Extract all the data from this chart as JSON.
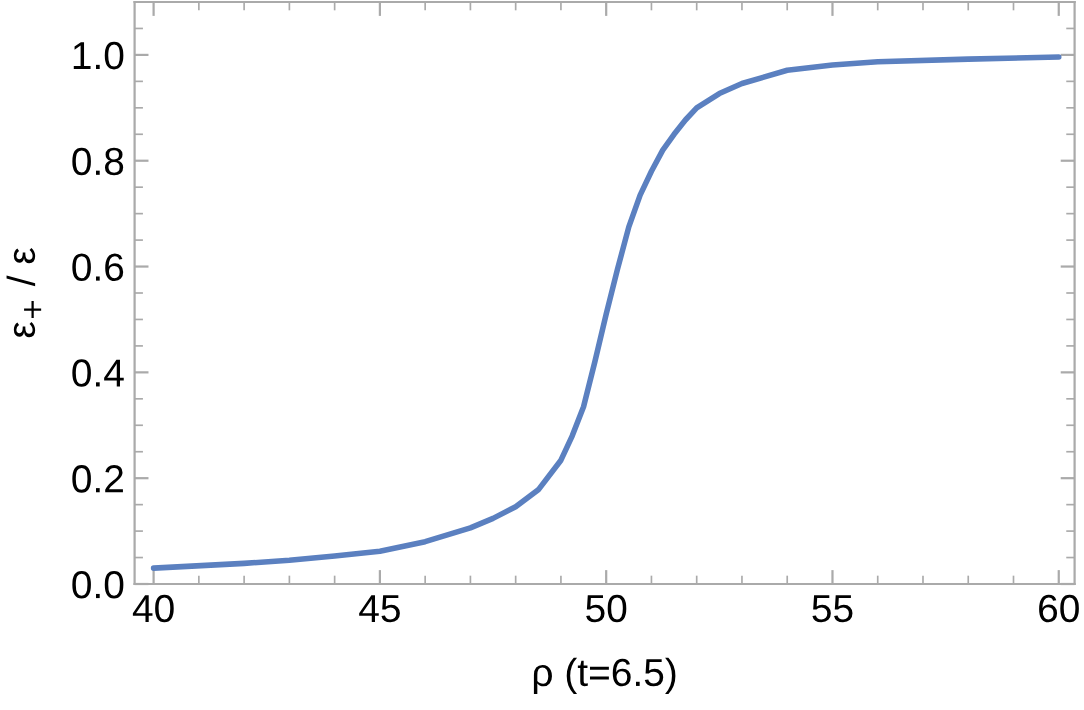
{
  "chart_data": {
    "type": "line",
    "xlabel": "ρ (t=6.5)",
    "ylabel": "ε$_{+}$ / ε",
    "xlim": [
      39.58,
      60.35
    ],
    "ylim": [
      0,
      1.1
    ],
    "xticks": [
      40,
      45,
      50,
      55,
      60
    ],
    "yticks": [
      {
        "value": 0,
        "label": "0.0"
      },
      0.2,
      0.4,
      0.6,
      0.8,
      {
        "value": 1,
        "label": "1.0"
      }
    ],
    "grid": false,
    "legend": false,
    "marker": "none",
    "line_style": "solid",
    "series": [
      {
        "color": "#5b80c0",
        "x": [
          40,
          42,
          43,
          44,
          45,
          46,
          47,
          47.5,
          48,
          48.5,
          49,
          49.25,
          49.5,
          49.75,
          50,
          50.25,
          50.5,
          50.75,
          51,
          51.25,
          51.5,
          51.75,
          52,
          52.5,
          53,
          54,
          55,
          56,
          58,
          60
        ],
        "values": [
          0.03,
          0.039,
          0.045,
          0.053,
          0.062,
          0.08,
          0.106,
          0.124,
          0.146,
          0.178,
          0.234,
          0.28,
          0.335,
          0.42,
          0.51,
          0.595,
          0.675,
          0.735,
          0.78,
          0.82,
          0.85,
          0.877,
          0.9,
          0.927,
          0.946,
          0.971,
          0.981,
          0.987,
          0.992,
          0.996
        ]
      }
    ]
  }
}
